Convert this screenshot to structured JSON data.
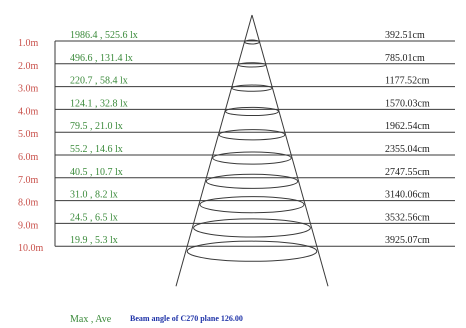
{
  "levels": [
    {
      "distance": "1.0m",
      "illuminance": "1986.4 , 525.6 lx",
      "diameter": "392.51cm"
    },
    {
      "distance": "2.0m",
      "illuminance": "496.6 , 131.4 lx",
      "diameter": "785.01cm"
    },
    {
      "distance": "3.0m",
      "illuminance": "220.7 , 58.4 lx",
      "diameter": "1177.52cm"
    },
    {
      "distance": "4.0m",
      "illuminance": "124.1 , 32.8 lx",
      "diameter": "1570.03cm"
    },
    {
      "distance": "5.0m",
      "illuminance": "79.5 , 21.0 lx",
      "diameter": "1962.54cm"
    },
    {
      "distance": "6.0m",
      "illuminance": "55.2 , 14.6 lx",
      "diameter": "2355.04cm"
    },
    {
      "distance": "7.0m",
      "illuminance": "40.5 , 10.7 lx",
      "diameter": "2747.55cm"
    },
    {
      "distance": "8.0m",
      "illuminance": "31.0 , 8.2 lx",
      "diameter": "3140.06cm"
    },
    {
      "distance": "9.0m",
      "illuminance": "24.5 , 6.5 lx",
      "diameter": "3532.56cm"
    },
    {
      "distance": "10.0m",
      "illuminance": "19.9 , 5.3 lx",
      "diameter": "3925.07cm"
    }
  ],
  "legend": {
    "key": "Max , Ave",
    "beam_note": "Beam angle of C270 plane 126.00"
  },
  "colors": {
    "line": "#3a3a3a",
    "distance": "#c8504a",
    "illuminance": "#3a8a3a",
    "diameter": "#222222",
    "note": "#1f33a8"
  }
}
